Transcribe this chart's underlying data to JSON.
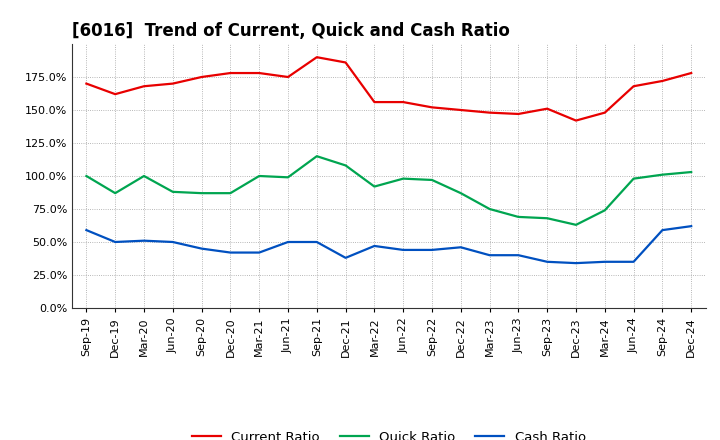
{
  "title": "[6016]  Trend of Current, Quick and Cash Ratio",
  "x_labels": [
    "Sep-19",
    "Dec-19",
    "Mar-20",
    "Jun-20",
    "Sep-20",
    "Dec-20",
    "Mar-21",
    "Jun-21",
    "Sep-21",
    "Dec-21",
    "Mar-22",
    "Jun-22",
    "Sep-22",
    "Dec-22",
    "Mar-23",
    "Jun-23",
    "Sep-23",
    "Dec-23",
    "Mar-24",
    "Jun-24",
    "Sep-24",
    "Dec-24"
  ],
  "current_ratio": [
    170,
    162,
    168,
    170,
    175,
    178,
    178,
    175,
    190,
    186,
    156,
    156,
    152,
    150,
    148,
    147,
    151,
    142,
    148,
    168,
    172,
    178
  ],
  "quick_ratio": [
    100,
    87,
    100,
    88,
    87,
    87,
    100,
    99,
    115,
    108,
    92,
    98,
    97,
    87,
    75,
    69,
    68,
    63,
    74,
    98,
    101,
    103
  ],
  "cash_ratio": [
    59,
    50,
    51,
    50,
    45,
    42,
    42,
    50,
    50,
    38,
    47,
    44,
    44,
    46,
    40,
    40,
    35,
    34,
    35,
    35,
    59,
    62
  ],
  "current_color": "#e80000",
  "quick_color": "#00a550",
  "cash_color": "#0050c0",
  "bg_color": "#ffffff",
  "plot_bg_color": "#ffffff",
  "grid_color": "#a0a0a0",
  "ylim": [
    0,
    200
  ],
  "yticks": [
    0,
    25,
    50,
    75,
    100,
    125,
    150,
    175
  ],
  "ytick_labels": [
    "0.0%",
    "25.0%",
    "50.0%",
    "75.0%",
    "100.0%",
    "125.0%",
    "150.0%",
    "175.0%"
  ],
  "legend_labels": [
    "Current Ratio",
    "Quick Ratio",
    "Cash Ratio"
  ],
  "title_fontsize": 12,
  "axis_fontsize": 8,
  "legend_fontsize": 9.5,
  "line_width": 1.6
}
